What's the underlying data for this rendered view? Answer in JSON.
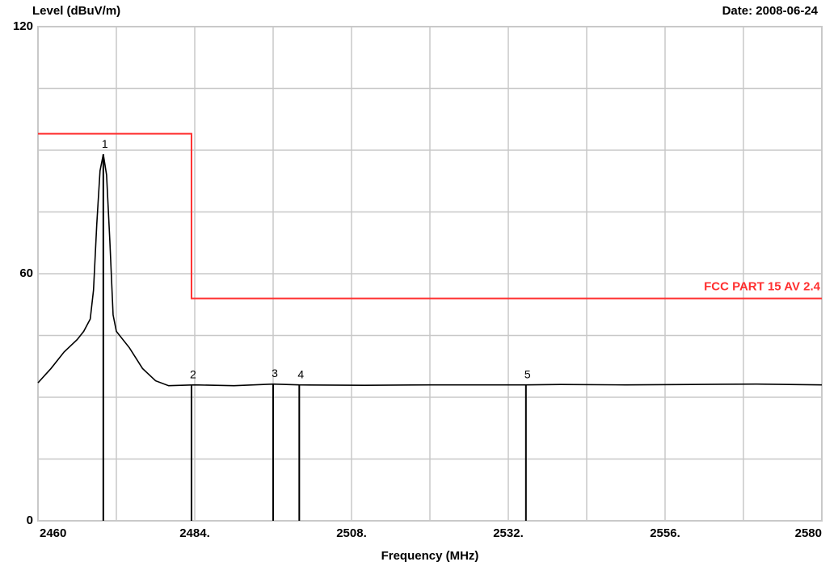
{
  "chart_data": {
    "type": "line",
    "title": "Level (dBuV/m)",
    "date": "Date: 2008-06-24",
    "xlabel": "Frequency (MHz)",
    "xlim": [
      2460,
      2580
    ],
    "xticks": [
      2460,
      {
        "value": 2484,
        "label": "2484."
      },
      {
        "value": 2508,
        "label": "2508."
      },
      {
        "value": 2532,
        "label": "2532."
      },
      {
        "value": 2556,
        "label": "2556."
      },
      2580
    ],
    "xminor": [
      2472,
      2496,
      2520,
      2544,
      2568
    ],
    "ylim": [
      0,
      120
    ],
    "yticks": [
      0,
      60,
      120
    ],
    "yminor": [
      15,
      30,
      45,
      75,
      90,
      105
    ],
    "grid": true,
    "series": [
      {
        "color": "#000000",
        "x": [
          2460,
          2462,
          2464,
          2466,
          2467,
          2468,
          2468.5,
          2469,
          2469.5,
          2470,
          2470.5,
          2471,
          2471.5,
          2472,
          2474,
          2476,
          2478,
          2480,
          2484,
          2490,
          2496,
          2500,
          2510,
          2520,
          2530,
          2534.7,
          2540,
          2550,
          2560,
          2570,
          2580
        ],
        "values": [
          33.5,
          37,
          41,
          44,
          46,
          49,
          56,
          72,
          85,
          89,
          84,
          68,
          50,
          46,
          42,
          37,
          34,
          32.8,
          33,
          32.8,
          33.2,
          33,
          32.9,
          33,
          33,
          33,
          33.1,
          33,
          33.1,
          33.2,
          33
        ]
      },
      {
        "name": "FCC PART 15  AV 2.4",
        "color": "#ff3030",
        "x": [
          2460,
          2483.5,
          2483.5,
          2580
        ],
        "values": [
          94,
          94,
          54,
          54
        ]
      }
    ],
    "markers": {
      "color": "#000000",
      "labels": [
        "1",
        "2",
        "3",
        "4",
        "5"
      ],
      "x": [
        2470,
        2483.5,
        2496,
        2500,
        2534.7
      ],
      "values": [
        89,
        33,
        33.3,
        33,
        33
      ]
    }
  }
}
